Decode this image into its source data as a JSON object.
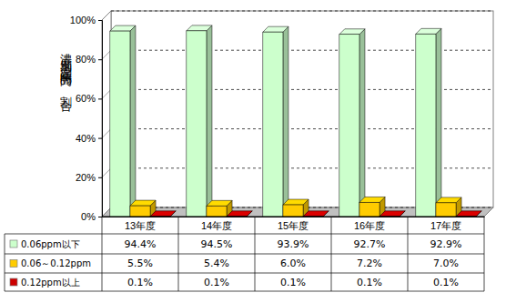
{
  "chart_data": {
    "type": "bar",
    "y_label": "濃度別測定時間の割合",
    "categories": [
      "13年度",
      "14年度",
      "15年度",
      "16年度",
      "17年度"
    ],
    "series": [
      {
        "name": "0.06ppm以下",
        "color": "#ccffcc",
        "values": [
          94.4,
          94.5,
          93.9,
          92.7,
          92.9
        ],
        "value_labels": [
          "94.4%",
          "94.5%",
          "93.9%",
          "92.7%",
          "92.9%"
        ]
      },
      {
        "name": "0.06～0.12ppm",
        "color": "#ffcc00",
        "values": [
          5.5,
          5.4,
          6.0,
          7.2,
          7.0
        ],
        "value_labels": [
          "5.5%",
          "5.4%",
          "6.0%",
          "7.2%",
          "7.0%"
        ]
      },
      {
        "name": "0.12ppm以上",
        "color": "#cc0000",
        "values": [
          0.1,
          0.1,
          0.1,
          0.1,
          0.1
        ],
        "value_labels": [
          "0.1%",
          "0.1%",
          "0.1%",
          "0.1%",
          "0.1%"
        ]
      }
    ],
    "ylim": [
      0,
      100
    ],
    "yticks": [
      {
        "value": 0,
        "label": "0%"
      },
      {
        "value": 20,
        "label": "20%"
      },
      {
        "value": 40,
        "label": "40%"
      },
      {
        "value": 60,
        "label": "60%"
      },
      {
        "value": 80,
        "label": "80%"
      },
      {
        "value": 100,
        "label": "100%"
      }
    ],
    "grid": true,
    "data_labels": true,
    "legend": "bottom"
  }
}
